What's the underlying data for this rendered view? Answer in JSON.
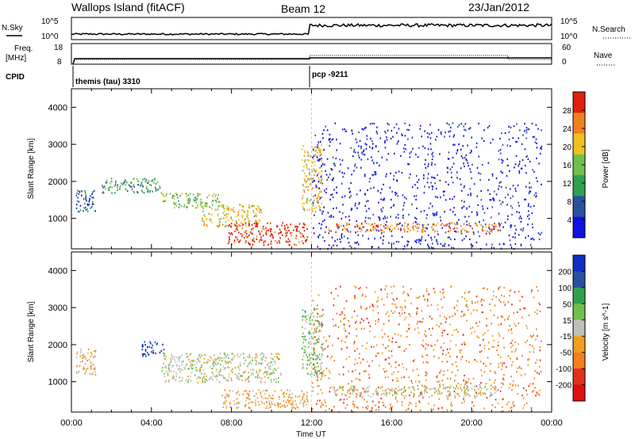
{
  "header": {
    "title": "Wallops Island (fitACF)",
    "beam": "Beam 12",
    "date": "23/Jan/2012"
  },
  "nsky_panel": {
    "left_label": "N.Sky",
    "right_label": "N.Search",
    "left_ticks": [
      "10^5",
      "10^0"
    ],
    "right_ticks": [
      "10^5",
      "10^0"
    ]
  },
  "freq_panel": {
    "left_label_1": "Freq.",
    "left_label_2": "[MHz]",
    "right_label": "Nave",
    "left_ticks": [
      "18",
      "8"
    ],
    "right_ticks": [
      "60",
      "0"
    ]
  },
  "cpid": {
    "label": "CPID",
    "segment_1": "themis (tau) 3310",
    "segment_2": "pcp -9211"
  },
  "chart_data": [
    {
      "type": "heatmap",
      "panel": "power",
      "ylabel": "Slant Range [km]",
      "xlabel": "",
      "ylim": [
        180,
        4500
      ],
      "yticks": [
        "1000",
        "2000",
        "3000",
        "4000"
      ],
      "xticks": [
        "00:00",
        "04:00",
        "08:00",
        "12:00",
        "16:00",
        "20:00",
        "00:00"
      ],
      "colorbar_label": "Power [dB]",
      "colorbar_ticks": [
        "4",
        "8",
        "12",
        "16",
        "20",
        "24",
        "28"
      ],
      "colors": [
        "#1010e0",
        "#2a50a0",
        "#30a050",
        "#70c050",
        "#f0c020",
        "#f08020",
        "#e02010"
      ],
      "features": [
        {
          "t": [
            0.2,
            1.2
          ],
          "range": [
            1200,
            1800
          ],
          "level": 1
        },
        {
          "t": [
            1.5,
            4.5
          ],
          "range": [
            1700,
            2100
          ],
          "level": 2
        },
        {
          "t": [
            4.5,
            7.5
          ],
          "range": [
            1300,
            1700
          ],
          "level": 3
        },
        {
          "t": [
            6.5,
            9.5
          ],
          "range": [
            800,
            1400
          ],
          "level": 4
        },
        {
          "t": [
            7.8,
            11.8
          ],
          "range": [
            300,
            900
          ],
          "level": 6
        },
        {
          "t": [
            11.5,
            12.5
          ],
          "range": [
            1200,
            3000
          ],
          "level": 4
        },
        {
          "t": [
            12.0,
            23.5
          ],
          "range": [
            200,
            3600
          ],
          "level": 0
        },
        {
          "t": [
            12.8,
            21.5
          ],
          "range": [
            650,
            900
          ],
          "level": 5
        }
      ]
    },
    {
      "type": "heatmap",
      "panel": "velocity",
      "ylabel": "Slant Range [km]",
      "xlabel": "Time UT",
      "ylim": [
        180,
        4500
      ],
      "yticks": [
        "1000",
        "2000",
        "3000",
        "4000"
      ],
      "xticks": [
        "00:00",
        "04:00",
        "08:00",
        "12:00",
        "16:00",
        "20:00",
        "00:00"
      ],
      "colorbar_label": "Velocity [m s^-1]",
      "colorbar_ticks": [
        "200",
        "100",
        "50",
        "15",
        "-15",
        "-50",
        "-100",
        "-200"
      ],
      "colors": [
        "#1030c0",
        "#2a50a0",
        "#30a050",
        "#70c050",
        "#c0c0b8",
        "#f0a020",
        "#f08020",
        "#e03020",
        "#e01010"
      ],
      "features": [
        {
          "t": [
            0.2,
            1.2
          ],
          "range": [
            1200,
            1900
          ],
          "level": 5
        },
        {
          "t": [
            3.5,
            4.6
          ],
          "range": [
            1700,
            2100
          ],
          "level": 0
        },
        {
          "t": [
            4.5,
            10.5
          ],
          "range": [
            1000,
            1800
          ],
          "level": 4
        },
        {
          "t": [
            7.5,
            11.8
          ],
          "range": [
            300,
            800
          ],
          "level": 5
        },
        {
          "t": [
            11.5,
            12.5
          ],
          "range": [
            1200,
            3000
          ],
          "level": 3
        },
        {
          "t": [
            12.0,
            23.5
          ],
          "range": [
            200,
            3600
          ],
          "level": 6
        },
        {
          "t": [
            13,
            21.5
          ],
          "range": [
            600,
            900
          ],
          "level": 4
        }
      ]
    }
  ]
}
